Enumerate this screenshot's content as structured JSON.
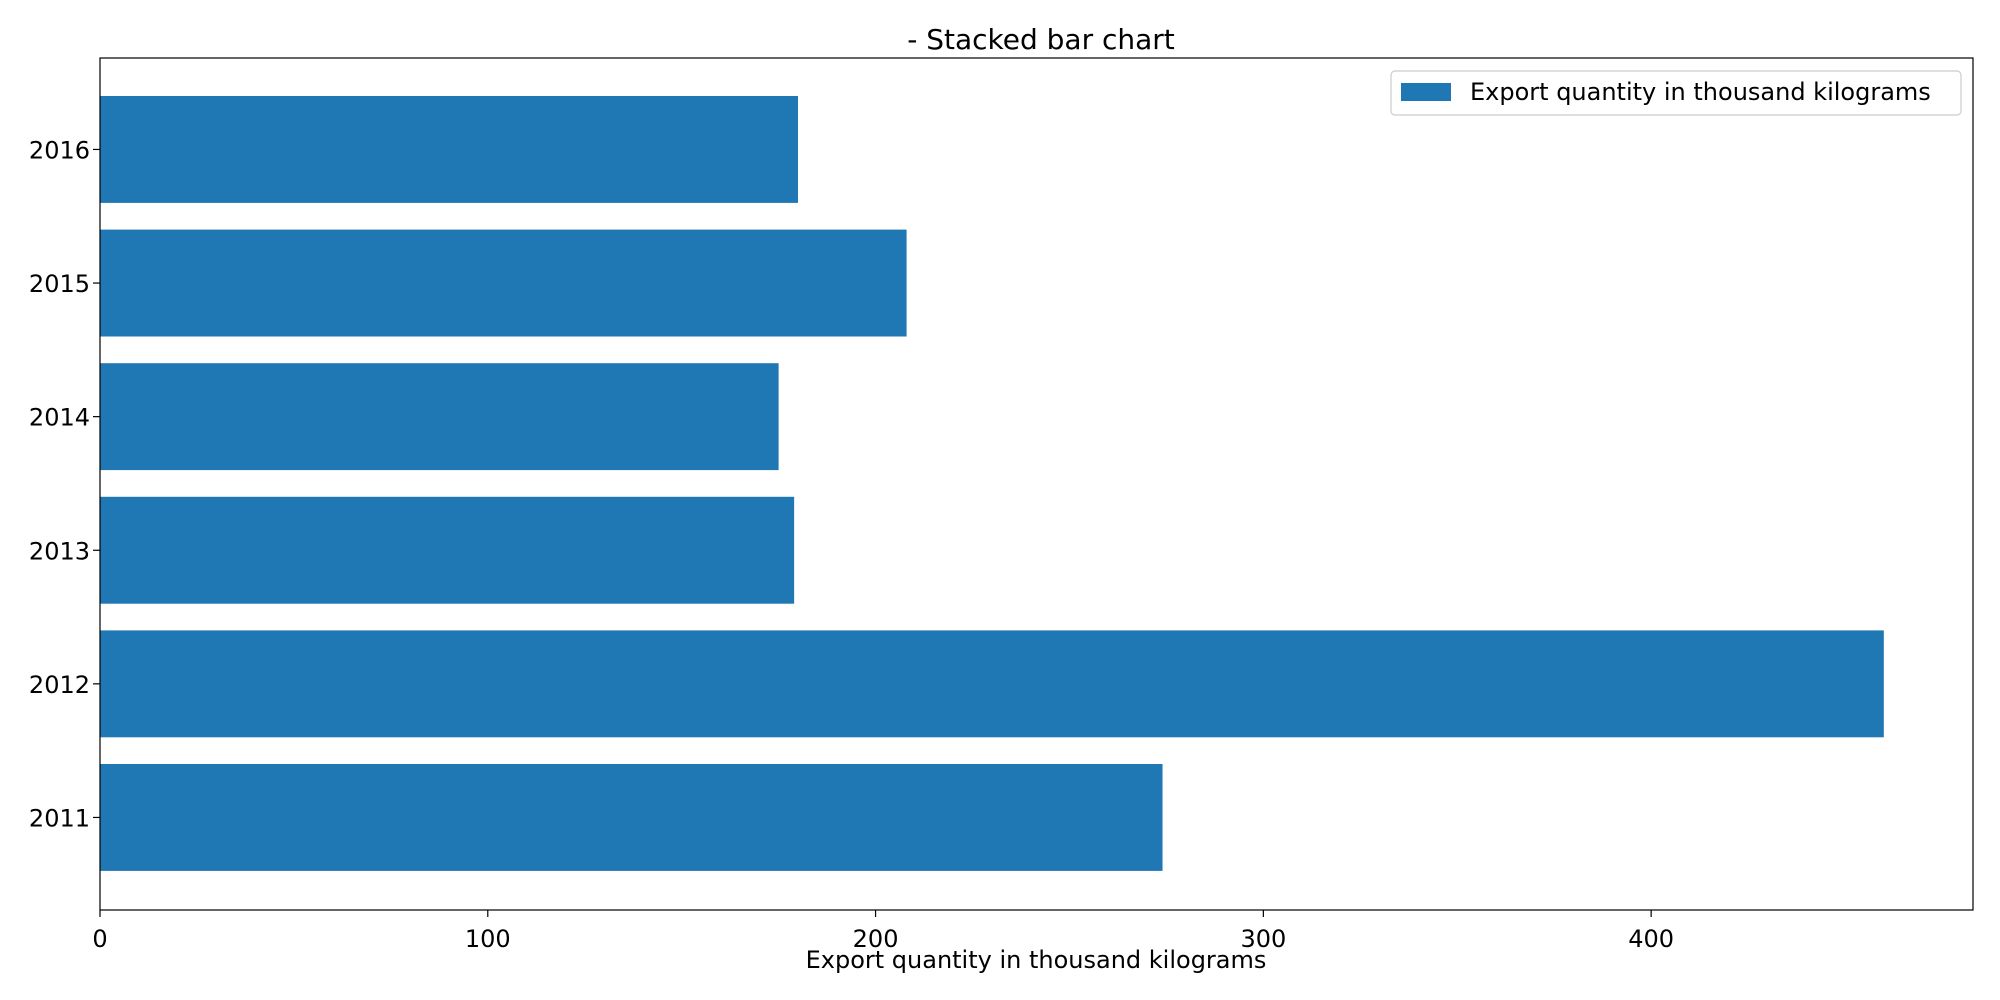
{
  "chart_data": {
    "type": "bar",
    "orientation": "horizontal",
    "title": "- Stacked bar chart",
    "xlabel": "Export quantity in thousand kilograms",
    "ylabel": "",
    "categories": [
      "2011",
      "2012",
      "2013",
      "2014",
      "2015",
      "2016"
    ],
    "series": [
      {
        "name": "Export quantity in thousand kilograms",
        "values": [
          274,
          460,
          179,
          175,
          208,
          180
        ],
        "color": "#1f77b4"
      }
    ],
    "xlim": [
      0,
      483
    ],
    "xticks": [
      0,
      100,
      200,
      300,
      400
    ],
    "grid": false,
    "legend_position": "top-right"
  }
}
